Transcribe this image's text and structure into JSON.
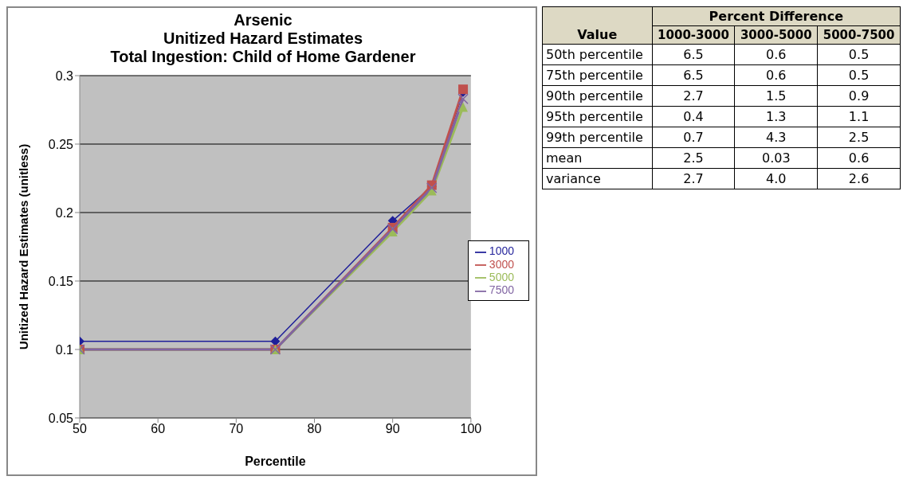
{
  "chart_data": [
    {
      "type": "line",
      "title": "Arsenic\nUnitized Hazard Estimates\nTotal Ingestion: Child of Home Gardener",
      "xlabel": "Percentile",
      "ylabel": "Unitized Hazard Estimates (unitless)",
      "x": [
        50,
        75,
        90,
        95,
        99
      ],
      "series": [
        {
          "name": "1000",
          "color": "#1f1f99",
          "marker": "diamond",
          "values": [
            0.106,
            0.106,
            0.194,
            0.219,
            0.288
          ]
        },
        {
          "name": "3000",
          "color": "#c0504d",
          "marker": "square",
          "values": [
            0.1,
            0.1,
            0.189,
            0.22,
            0.29
          ]
        },
        {
          "name": "5000",
          "color": "#9bbb59",
          "marker": "triangle",
          "values": [
            0.1,
            0.1,
            0.186,
            0.216,
            0.277
          ]
        },
        {
          "name": "7500",
          "color": "#8064a2",
          "marker": "cross",
          "values": [
            0.1,
            0.1,
            0.188,
            0.218,
            0.283
          ]
        }
      ],
      "xlim": [
        50,
        100
      ],
      "xticks": [
        50,
        60,
        70,
        80,
        90,
        100
      ],
      "ylim": [
        0.05,
        0.3
      ],
      "yticks": [
        0.05,
        0.1,
        0.15,
        0.2,
        0.25,
        0.3
      ],
      "grid": "y",
      "legend": "right"
    },
    {
      "type": "other",
      "ylabel": "Value",
      "title": "Percent Difference",
      "categories": [
        "1000-3000",
        "3000-5000",
        "5000-7500"
      ],
      "y_categories": [
        "50th percentile",
        "75th percentile",
        "90th percentile",
        "95th percentile",
        "99th percentile",
        "mean",
        "variance"
      ],
      "cell_labels": [
        [
          "6.5",
          "0.6",
          "0.5"
        ],
        [
          "6.5",
          "0.6",
          "0.5"
        ],
        [
          "2.7",
          "1.5",
          "0.9"
        ],
        [
          "0.4",
          "1.3",
          "1.1"
        ],
        [
          "0.7",
          "4.3",
          "2.5"
        ],
        [
          "2.5",
          "0.03",
          "0.6"
        ],
        [
          "2.7",
          "4.0",
          "2.6"
        ]
      ]
    }
  ]
}
